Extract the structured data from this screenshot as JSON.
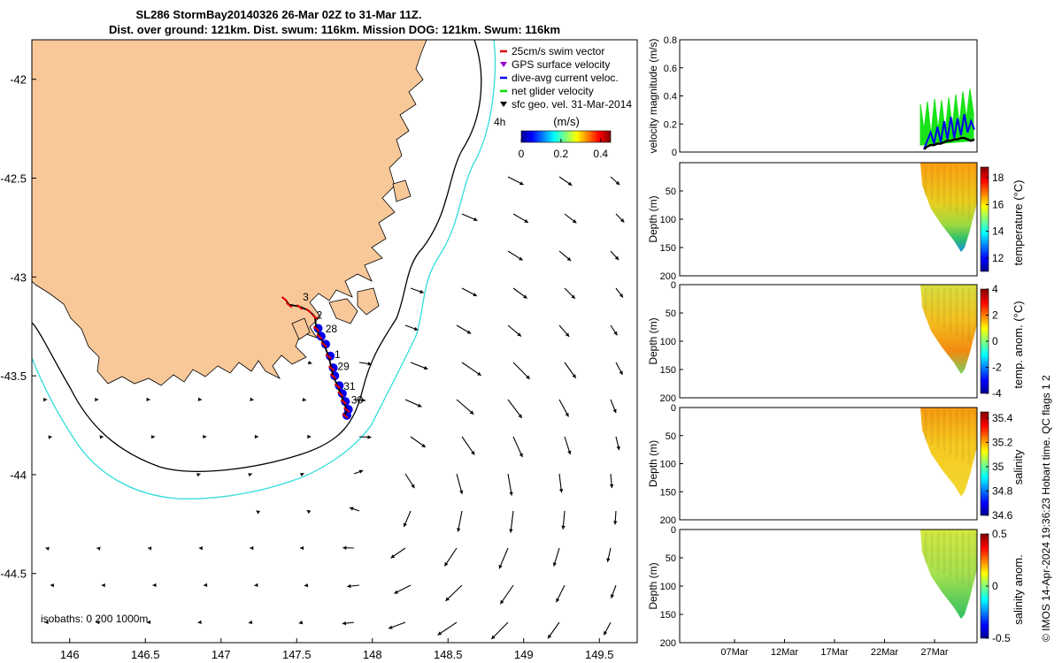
{
  "header": {
    "title_line1": "SL286 StormBay20140326 26-Mar 02Z to 31-Mar 11Z.",
    "title_line2": "Dist. over ground: 121km. Dist. swum: 116km. Mission DOG: 121km. Swum: 116km"
  },
  "side_note": "© IMOS 14-Apr-2024 19:36:23 Hobart time. QC flags 1  2",
  "colors": {
    "land": "#f9c899",
    "water": "#ffffff",
    "isobath_200": "#000000",
    "isobath_1000": "#33dddd",
    "swim_vector": "#e00000",
    "gps_velocity": "#9900cc",
    "dive_avg": "#0000ee",
    "net_glider": "#00e000",
    "sfc_geo": "#000000"
  },
  "chart_data": [
    {
      "type": "map",
      "name": "track-map",
      "xticks": [
        "146",
        "146.5",
        "147",
        "147.5",
        "148",
        "148.5",
        "149",
        "149.5"
      ],
      "yticks": [
        "-42",
        "-42.5",
        "-43",
        "-43.5",
        "-44",
        "-44.5"
      ],
      "xlim": [
        145.75,
        149.75
      ],
      "ylim": [
        -44.85,
        -41.8
      ],
      "legend": [
        {
          "label": "25cm/s swim vector",
          "color": "#e00000",
          "marker": "line"
        },
        {
          "label": "GPS surface velocity",
          "color": "#9900cc",
          "marker": "triangle"
        },
        {
          "label": "dive-avg current veloc.",
          "color": "#0000ee",
          "marker": "line"
        },
        {
          "label": "net glider velocity",
          "color": "#00e000",
          "marker": "line"
        },
        {
          "label": "sfc geo. vel. 31-Mar-2014",
          "color": "#000000",
          "marker": "triangle"
        }
      ],
      "legend_placement": "top-right",
      "colorbar": {
        "label": "(m/s)",
        "ticks": [
          "0",
          "0.2",
          "0.4"
        ],
        "range": [
          0,
          0.45
        ]
      },
      "track_day_labels": [
        {
          "text": "3",
          "lon": 147.54,
          "lat": -43.12
        },
        {
          "text": "2",
          "lon": 147.63,
          "lat": -43.21
        },
        {
          "text": "28",
          "lon": 147.69,
          "lat": -43.28
        },
        {
          "text": "1",
          "lon": 147.75,
          "lat": -43.41
        },
        {
          "text": "29",
          "lon": 147.77,
          "lat": -43.47
        },
        {
          "text": "31",
          "lon": 147.81,
          "lat": -43.57
        },
        {
          "text": "30",
          "lon": 147.86,
          "lat": -43.64
        }
      ],
      "track": [
        [
          147.42,
          -43.11
        ],
        [
          147.45,
          -43.14
        ],
        [
          147.52,
          -43.15
        ],
        [
          147.58,
          -43.17
        ],
        [
          147.62,
          -43.2
        ],
        [
          147.63,
          -43.26
        ],
        [
          147.65,
          -43.3
        ],
        [
          147.68,
          -43.34
        ],
        [
          147.71,
          -43.4
        ],
        [
          147.73,
          -43.46
        ],
        [
          147.74,
          -43.5
        ],
        [
          147.77,
          -43.55
        ],
        [
          147.79,
          -43.59
        ],
        [
          147.81,
          -43.63
        ],
        [
          147.83,
          -43.67
        ],
        [
          147.82,
          -43.7
        ]
      ],
      "annotation_4h": "4h",
      "isobath_label": "isobaths: 0   200  1000m"
    },
    {
      "type": "line",
      "name": "velocity-magnitude",
      "ylabel": "velocity magnitude (m/s)",
      "yticks": [
        "0",
        "0.2",
        "0.4",
        "0.6",
        "0.8"
      ],
      "ylim": [
        0,
        0.8
      ],
      "series": [
        {
          "name": "net glider velocity",
          "color": "#00e000",
          "values": [
            0.34,
            0.16,
            0.36,
            0.12,
            0.38,
            0.16,
            0.37,
            0.14,
            0.39,
            0.18,
            0.41,
            0.2,
            0.43,
            0.24,
            0.45,
            0.28
          ]
        },
        {
          "name": "dive-avg current veloc.",
          "color": "#0000ee",
          "values": [
            0.02,
            0.08,
            0.14,
            0.06,
            0.18,
            0.07,
            0.22,
            0.09,
            0.25,
            0.1,
            0.24,
            0.12,
            0.27,
            0.14,
            0.22,
            0.16
          ]
        },
        {
          "name": "sfc geo. vel. 31-Mar-2014",
          "color": "#000000",
          "values": [
            0.02,
            0.04,
            0.05,
            0.05,
            0.06,
            0.06,
            0.07,
            0.08,
            0.08,
            0.09,
            0.09,
            0.1,
            0.1,
            0.09,
            0.08,
            0.09
          ]
        }
      ]
    },
    {
      "type": "heatmap",
      "name": "temperature-section",
      "ylabel": "Depth (m)",
      "yticks": [
        "50",
        "100",
        "150",
        "200"
      ],
      "ylim": [
        200,
        0
      ],
      "colorbar_label": "temperature (°C)",
      "colorbar_ticks": [
        "18",
        "16",
        "14",
        "12"
      ],
      "colorbar_range": [
        11,
        18.8
      ]
    },
    {
      "type": "heatmap",
      "name": "temperature-anomaly-section",
      "ylabel": "Depth (m)",
      "yticks": [
        "0",
        "50",
        "100",
        "150",
        "200"
      ],
      "ylim": [
        200,
        0
      ],
      "colorbar_label": "temp. anom. (°C)",
      "colorbar_ticks": [
        "4",
        "2",
        "0",
        "-2",
        "-4"
      ],
      "colorbar_range": [
        -4,
        4
      ]
    },
    {
      "type": "heatmap",
      "name": "salinity-section",
      "ylabel": "Depth (m)",
      "yticks": [
        "0",
        "50",
        "100",
        "150",
        "200"
      ],
      "ylim": [
        200,
        0
      ],
      "colorbar_label": "salinity",
      "colorbar_ticks": [
        "35.4",
        "35.2",
        "35",
        "34.8",
        "34.6"
      ],
      "colorbar_range": [
        34.6,
        35.45
      ]
    },
    {
      "type": "heatmap",
      "name": "salinity-anomaly-section",
      "ylabel": "Depth (m)",
      "yticks": [
        "0",
        "50",
        "100",
        "150",
        "200"
      ],
      "ylim": [
        200,
        0
      ],
      "colorbar_label": "salinity anom.",
      "colorbar_ticks": [
        "0.5",
        "0",
        "-0.5"
      ],
      "colorbar_range": [
        -0.5,
        0.5
      ],
      "xticks": [
        "07Mar",
        "12Mar",
        "17Mar",
        "22Mar",
        "27Mar"
      ]
    }
  ]
}
